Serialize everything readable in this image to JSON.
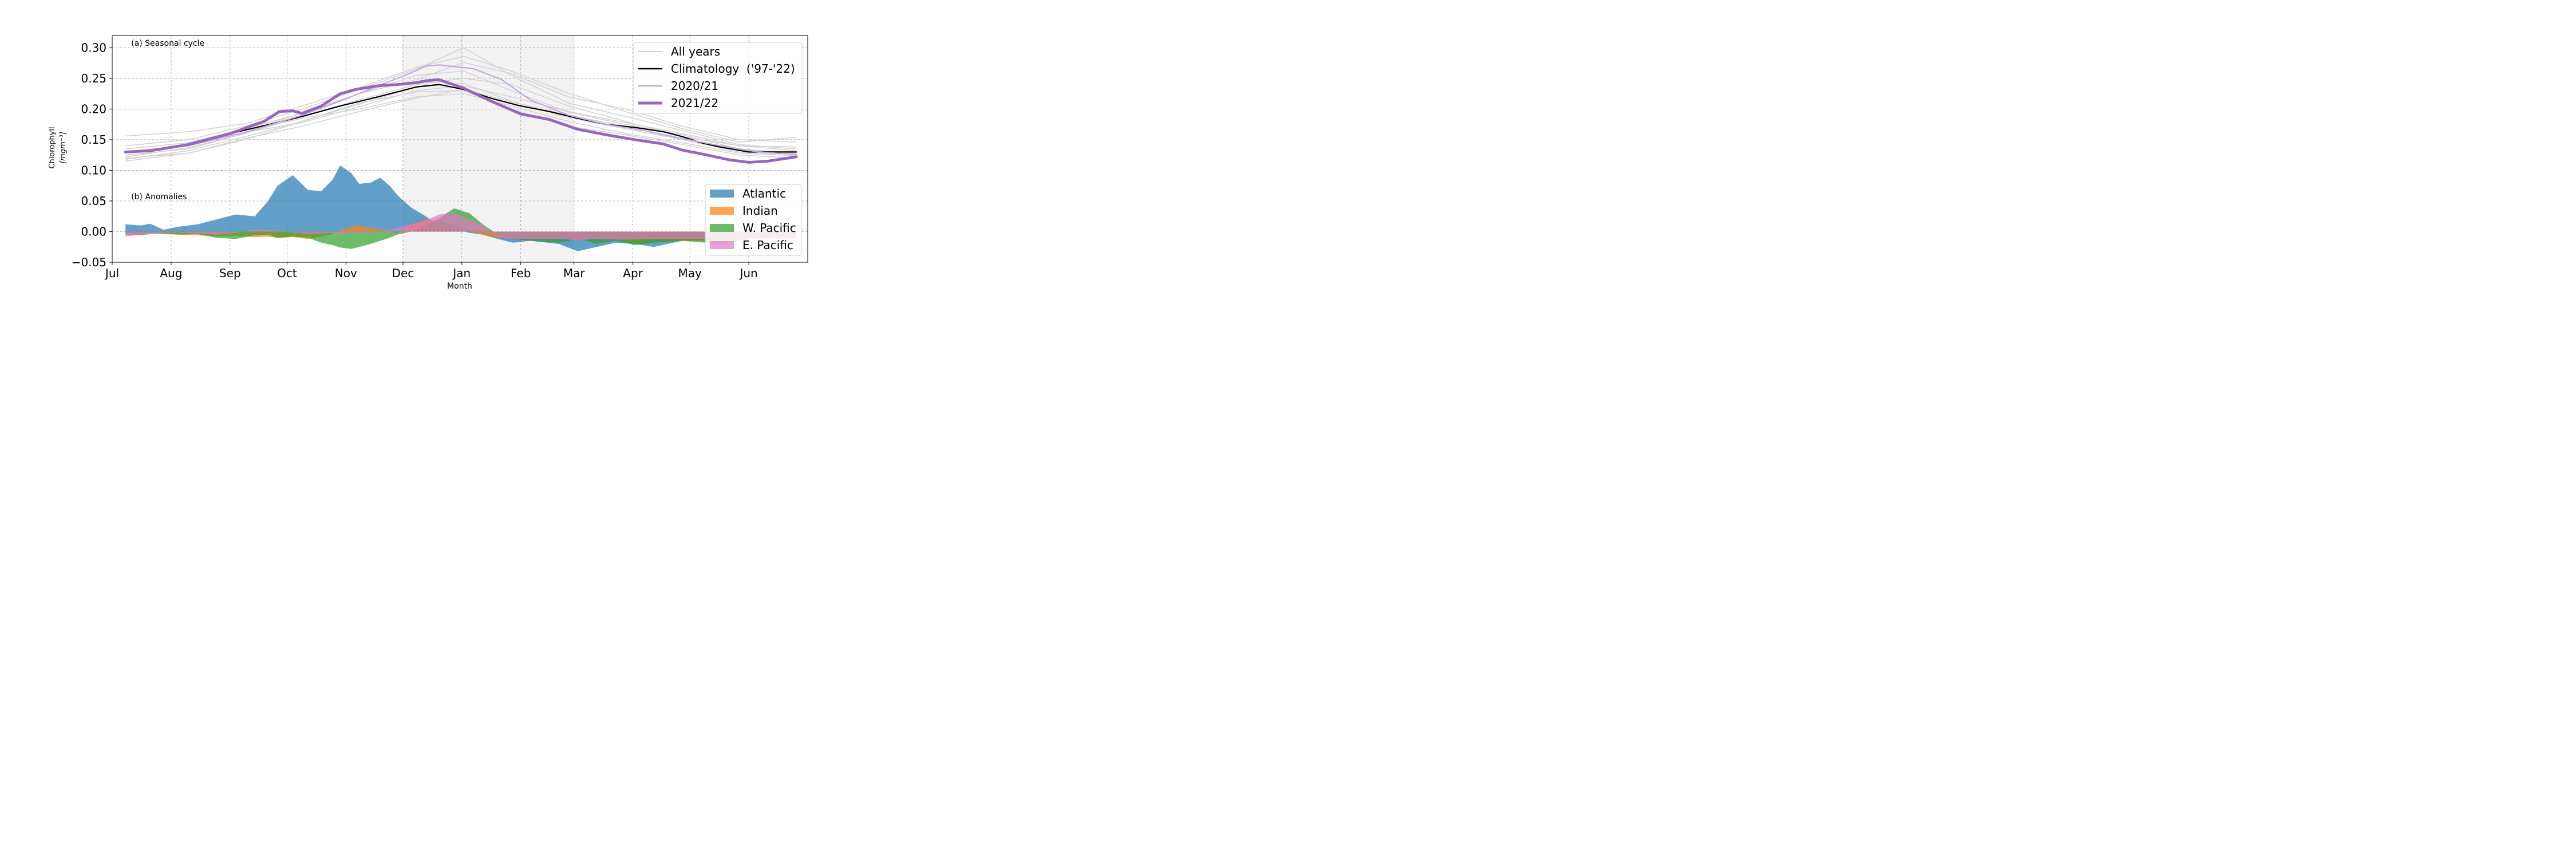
{
  "chart_data": {
    "type": "area",
    "xlabel": "Month",
    "ylabel_line1": "Chlorophyll",
    "ylabel_line2": "[mgm⁻³]",
    "x_axis": "day of season starting Jul 1",
    "xlim": [
      0,
      366
    ],
    "ylim": [
      -0.05,
      0.32
    ],
    "x_ticks": [
      {
        "label": "Jul",
        "day": 0
      },
      {
        "label": "Aug",
        "day": 31
      },
      {
        "label": "Sep",
        "day": 62
      },
      {
        "label": "Oct",
        "day": 92
      },
      {
        "label": "Nov",
        "day": 123
      },
      {
        "label": "Dec",
        "day": 153
      },
      {
        "label": "Jan",
        "day": 184
      },
      {
        "label": "Feb",
        "day": 215
      },
      {
        "label": "Mar",
        "day": 243
      },
      {
        "label": "Apr",
        "day": 274
      },
      {
        "label": "May",
        "day": 304
      },
      {
        "label": "Jun",
        "day": 335
      }
    ],
    "y_ticks": [
      {
        "label": "−0.05",
        "value": -0.05
      },
      {
        "label": "0.00",
        "value": 0.0
      },
      {
        "label": "0.05",
        "value": 0.05
      },
      {
        "label": "0.10",
        "value": 0.1
      },
      {
        "label": "0.15",
        "value": 0.15
      },
      {
        "label": "0.20",
        "value": 0.2
      },
      {
        "label": "0.25",
        "value": 0.25
      },
      {
        "label": "0.30",
        "value": 0.3
      }
    ],
    "grid": true,
    "shaded_period": {
      "from_day": 153,
      "to_day": 243,
      "color": "#f2f2f2"
    },
    "annotations": [
      {
        "text": "(a) Seasonal cycle",
        "day": 10,
        "value": 0.303
      },
      {
        "text": "(b) Anomalies",
        "day": 10,
        "value": 0.053
      }
    ],
    "all_years": {
      "name": "All years",
      "color": "#d3d3d3",
      "x": [
        7,
        40,
        70,
        100,
        130,
        160,
        185,
        210,
        240,
        270,
        300,
        330,
        360
      ],
      "lines": [
        [
          0.156,
          0.163,
          0.176,
          0.205,
          0.235,
          0.268,
          0.286,
          0.262,
          0.226,
          0.196,
          0.168,
          0.146,
          0.154
        ],
        [
          0.12,
          0.128,
          0.15,
          0.18,
          0.208,
          0.236,
          0.242,
          0.213,
          0.186,
          0.168,
          0.15,
          0.13,
          0.126
        ],
        [
          0.125,
          0.135,
          0.16,
          0.195,
          0.225,
          0.255,
          0.262,
          0.23,
          0.195,
          0.175,
          0.158,
          0.135,
          0.128
        ],
        [
          0.13,
          0.14,
          0.165,
          0.185,
          0.2,
          0.22,
          0.225,
          0.205,
          0.18,
          0.16,
          0.145,
          0.128,
          0.124
        ],
        [
          0.14,
          0.15,
          0.172,
          0.2,
          0.232,
          0.265,
          0.3,
          0.255,
          0.21,
          0.188,
          0.165,
          0.142,
          0.135
        ],
        [
          0.115,
          0.128,
          0.152,
          0.172,
          0.196,
          0.218,
          0.232,
          0.212,
          0.19,
          0.172,
          0.15,
          0.133,
          0.13
        ],
        [
          0.122,
          0.137,
          0.16,
          0.188,
          0.215,
          0.24,
          0.25,
          0.24,
          0.205,
          0.18,
          0.155,
          0.14,
          0.138
        ],
        [
          0.135,
          0.145,
          0.168,
          0.193,
          0.225,
          0.248,
          0.276,
          0.258,
          0.22,
          0.2,
          0.172,
          0.15,
          0.146
        ],
        [
          0.128,
          0.142,
          0.162,
          0.178,
          0.204,
          0.23,
          0.238,
          0.22,
          0.196,
          0.178,
          0.16,
          0.14,
          0.132
        ],
        [
          0.118,
          0.132,
          0.155,
          0.18,
          0.21,
          0.228,
          0.23,
          0.2,
          0.172,
          0.158,
          0.142,
          0.125,
          0.12
        ]
      ]
    },
    "series": [
      {
        "name": "Climatology  ('97-'22)",
        "color": "#000000",
        "x": [
          7,
          20,
          40,
          62,
          80,
          100,
          120,
          140,
          160,
          172,
          185,
          200,
          215,
          230,
          245,
          260,
          275,
          290,
          300,
          310,
          320,
          335,
          345,
          360
        ],
        "values": [
          0.13,
          0.133,
          0.142,
          0.16,
          0.173,
          0.188,
          0.205,
          0.22,
          0.236,
          0.24,
          0.232,
          0.217,
          0.205,
          0.196,
          0.185,
          0.175,
          0.17,
          0.163,
          0.155,
          0.145,
          0.138,
          0.13,
          0.13,
          0.13
        ]
      },
      {
        "name": "2020/21",
        "color": "#c3a6dc",
        "x": [
          7,
          40,
          70,
          100,
          120,
          140,
          155,
          165,
          172,
          178,
          190,
          205,
          220,
          240,
          260,
          280,
          300,
          320,
          340,
          360
        ],
        "values": [
          0.13,
          0.14,
          0.162,
          0.19,
          0.213,
          0.238,
          0.256,
          0.27,
          0.272,
          0.27,
          0.266,
          0.248,
          0.215,
          0.19,
          0.175,
          0.165,
          0.152,
          0.14,
          0.13,
          0.126
        ]
      },
      {
        "name": "2021/22",
        "color": "#9467bd",
        "x": [
          7,
          20,
          40,
          62,
          80,
          88,
          95,
          100,
          110,
          120,
          128,
          140,
          150,
          160,
          165,
          172,
          185,
          200,
          215,
          230,
          245,
          260,
          275,
          290,
          300,
          310,
          325,
          335,
          345,
          360
        ],
        "values": [
          0.13,
          0.132,
          0.142,
          0.16,
          0.18,
          0.196,
          0.197,
          0.193,
          0.205,
          0.225,
          0.232,
          0.238,
          0.24,
          0.243,
          0.246,
          0.248,
          0.234,
          0.212,
          0.192,
          0.183,
          0.167,
          0.158,
          0.15,
          0.143,
          0.133,
          0.127,
          0.117,
          0.113,
          0.115,
          0.122
        ]
      }
    ],
    "anomalies": {
      "x": [
        7,
        15,
        20,
        27,
        35,
        45,
        55,
        65,
        75,
        82,
        87,
        95,
        103,
        110,
        116,
        120,
        126,
        130,
        136,
        141,
        146,
        150,
        157,
        165,
        172,
        180,
        188,
        195,
        203,
        211,
        220,
        235,
        245,
        255,
        265,
        275,
        285,
        300,
        320,
        340,
        360
      ],
      "series": [
        {
          "name": "Atlantic",
          "color": "#1f77b4",
          "values": [
            0.012,
            0.01,
            0.013,
            0.003,
            0.008,
            0.012,
            0.02,
            0.028,
            0.025,
            0.05,
            0.075,
            0.092,
            0.068,
            0.066,
            0.085,
            0.108,
            0.095,
            0.078,
            0.08,
            0.088,
            0.075,
            0.06,
            0.04,
            0.025,
            0.01,
            0.005,
            -0.002,
            -0.005,
            -0.012,
            -0.018,
            -0.015,
            -0.02,
            -0.032,
            -0.025,
            -0.018,
            -0.02,
            -0.025,
            -0.015,
            -0.012,
            -0.008,
            -0.005
          ]
        },
        {
          "name": "Indian",
          "color": "#ff7f0e",
          "values": [
            -0.003,
            -0.004,
            -0.002,
            -0.004,
            -0.005,
            -0.006,
            -0.008,
            -0.007,
            -0.009,
            -0.008,
            -0.01,
            -0.009,
            -0.012,
            -0.008,
            -0.004,
            0.002,
            0.008,
            0.01,
            0.006,
            0.004,
            0.001,
            -0.002,
            0.01,
            0.02,
            0.018,
            0.01,
            0.0,
            -0.005,
            -0.01,
            -0.012,
            -0.01,
            -0.008,
            -0.012,
            -0.01,
            -0.012,
            -0.018,
            -0.015,
            -0.015,
            -0.015,
            -0.01,
            -0.008
          ]
        },
        {
          "name": "W. Pacific",
          "color": "#2ca02c",
          "values": [
            -0.005,
            -0.006,
            -0.004,
            -0.003,
            -0.005,
            -0.004,
            -0.01,
            -0.012,
            -0.006,
            -0.005,
            -0.01,
            -0.008,
            -0.01,
            -0.018,
            -0.022,
            -0.026,
            -0.028,
            -0.025,
            -0.02,
            -0.015,
            -0.01,
            -0.005,
            0.0,
            0.008,
            0.022,
            0.038,
            0.03,
            0.012,
            -0.005,
            -0.012,
            -0.015,
            -0.018,
            -0.012,
            -0.02,
            -0.015,
            -0.022,
            -0.018,
            -0.015,
            -0.02,
            -0.01,
            -0.008
          ]
        },
        {
          "name": "E. Pacific",
          "color": "#e377c2",
          "values": [
            -0.008,
            -0.005,
            -0.004,
            -0.002,
            -0.002,
            -0.003,
            -0.005,
            -0.002,
            0.003,
            0.002,
            0.002,
            -0.001,
            -0.004,
            -0.003,
            -0.002,
            -0.004,
            -0.002,
            -0.003,
            -0.001,
            0.0,
            0.003,
            0.006,
            0.012,
            0.018,
            0.028,
            0.03,
            0.02,
            0.01,
            -0.008,
            -0.012,
            -0.012,
            -0.012,
            -0.014,
            -0.012,
            -0.013,
            -0.013,
            -0.012,
            -0.012,
            -0.012,
            -0.012,
            -0.012
          ]
        }
      ]
    },
    "legend_top": {
      "placement": "upper right"
    },
    "legend_bottom": {
      "placement": "lower right"
    }
  }
}
